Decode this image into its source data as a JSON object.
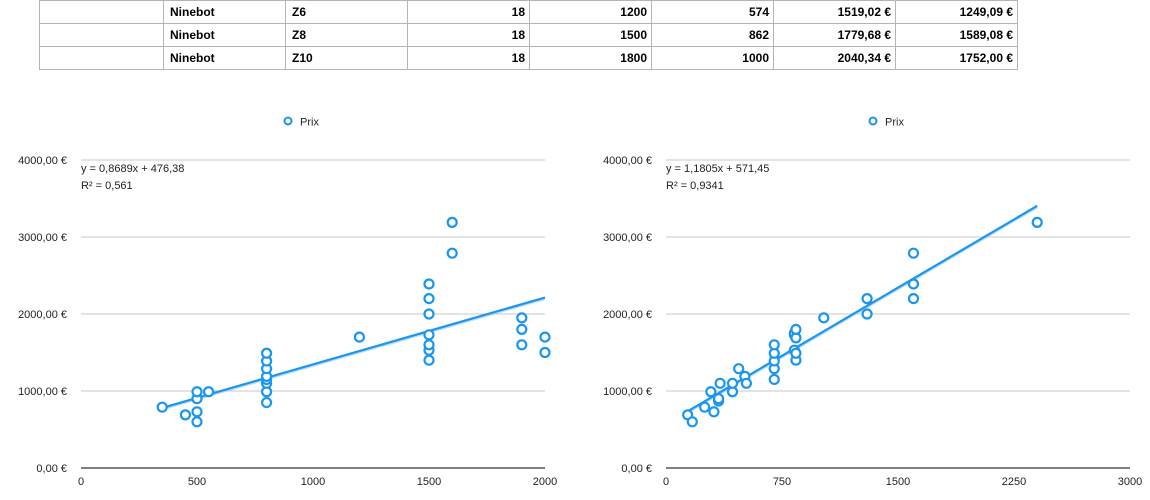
{
  "table": {
    "rows": [
      [
        "",
        "Ninebot",
        "Z6",
        "18",
        "1200",
        "574",
        "1519,02 €",
        "1249,09 €"
      ],
      [
        "",
        "Ninebot",
        "Z8",
        "18",
        "1500",
        "862",
        "1779,68 €",
        "1589,08 €"
      ],
      [
        "",
        "Ninebot",
        "Z10",
        "18",
        "1800",
        "1000",
        "2040,34 €",
        "1752,00 €"
      ]
    ]
  },
  "colors": {
    "series": "#1a96ee",
    "grid": "#c8c8c8",
    "axis": "#000000"
  },
  "chart_data": [
    {
      "type": "scatter",
      "legend_position": "top-center",
      "grid": true,
      "xlim": [
        0,
        2000
      ],
      "ylim": [
        0,
        4000
      ],
      "x_ticks": [
        0,
        500,
        1000,
        1500,
        2000
      ],
      "x_tick_labels": [
        "0",
        "500",
        "1000",
        "1500",
        "2000"
      ],
      "y_ticks": [
        0,
        1000,
        2000,
        3000,
        4000
      ],
      "y_tick_labels": [
        "0,00 €",
        "1000,00 €",
        "2000,00 €",
        "3000,00 €",
        "4000,00 €"
      ],
      "series": [
        {
          "name": "Prix",
          "points": [
            [
              350,
              790
            ],
            [
              450,
              690
            ],
            [
              500,
              600
            ],
            [
              500,
              730
            ],
            [
              500,
              900
            ],
            [
              500,
              990
            ],
            [
              550,
              990
            ],
            [
              800,
              850
            ],
            [
              800,
              990
            ],
            [
              800,
              1100
            ],
            [
              800,
              1150
            ],
            [
              800,
              1190
            ],
            [
              800,
              1290
            ],
            [
              800,
              1390
            ],
            [
              800,
              1490
            ],
            [
              1200,
              1700
            ],
            [
              1500,
              1400
            ],
            [
              1500,
              1530
            ],
            [
              1500,
              1600
            ],
            [
              1500,
              1730
            ],
            [
              1500,
              2000
            ],
            [
              1500,
              2200
            ],
            [
              1500,
              2390
            ],
            [
              1600,
              2790
            ],
            [
              1600,
              3190
            ],
            [
              1900,
              1600
            ],
            [
              1900,
              1800
            ],
            [
              1900,
              1950
            ],
            [
              2000,
              1500
            ],
            [
              2000,
              1700
            ]
          ],
          "trendline": {
            "slope": 0.8689,
            "intercept": 476.38,
            "x_from": 350,
            "x_to": 2000
          }
        }
      ],
      "equation": "y = 0,8689x + 476,38",
      "r_squared": "R² = 0,561"
    },
    {
      "type": "scatter",
      "legend_position": "top-center",
      "grid": true,
      "xlim": [
        0,
        3000
      ],
      "ylim": [
        0,
        4000
      ],
      "x_ticks": [
        0,
        750,
        1500,
        2250,
        3000
      ],
      "x_tick_labels": [
        "0",
        "750",
        "1500",
        "2250",
        "3000"
      ],
      "y_ticks": [
        0,
        1000,
        2000,
        3000,
        4000
      ],
      "y_tick_labels": [
        "0,00 €",
        "1000,00 €",
        "2000,00 €",
        "3000,00 €",
        "4000,00 €"
      ],
      "series": [
        {
          "name": "Prix",
          "points": [
            [
              140,
              690
            ],
            [
              170,
              600
            ],
            [
              250,
              790
            ],
            [
              290,
              990
            ],
            [
              310,
              730
            ],
            [
              340,
              870
            ],
            [
              340,
              900
            ],
            [
              350,
              1100
            ],
            [
              430,
              990
            ],
            [
              430,
              1100
            ],
            [
              470,
              1290
            ],
            [
              510,
              1190
            ],
            [
              520,
              1100
            ],
            [
              700,
              1150
            ],
            [
              700,
              1290
            ],
            [
              700,
              1390
            ],
            [
              700,
              1490
            ],
            [
              700,
              1600
            ],
            [
              830,
              1530
            ],
            [
              830,
              1730
            ],
            [
              830,
              1750
            ],
            [
              840,
              1400
            ],
            [
              840,
              1490
            ],
            [
              840,
              1690
            ],
            [
              840,
              1800
            ],
            [
              1020,
              1950
            ],
            [
              1300,
              2000
            ],
            [
              1300,
              2200
            ],
            [
              1600,
              2200
            ],
            [
              1600,
              2390
            ],
            [
              1600,
              2790
            ],
            [
              2400,
              3190
            ]
          ],
          "trendline": {
            "slope": 1.1805,
            "intercept": 571.45,
            "x_from": 140,
            "x_to": 2400
          }
        }
      ],
      "equation": "y = 1,1805x + 571,45",
      "r_squared": "R² = 0,9341"
    }
  ]
}
